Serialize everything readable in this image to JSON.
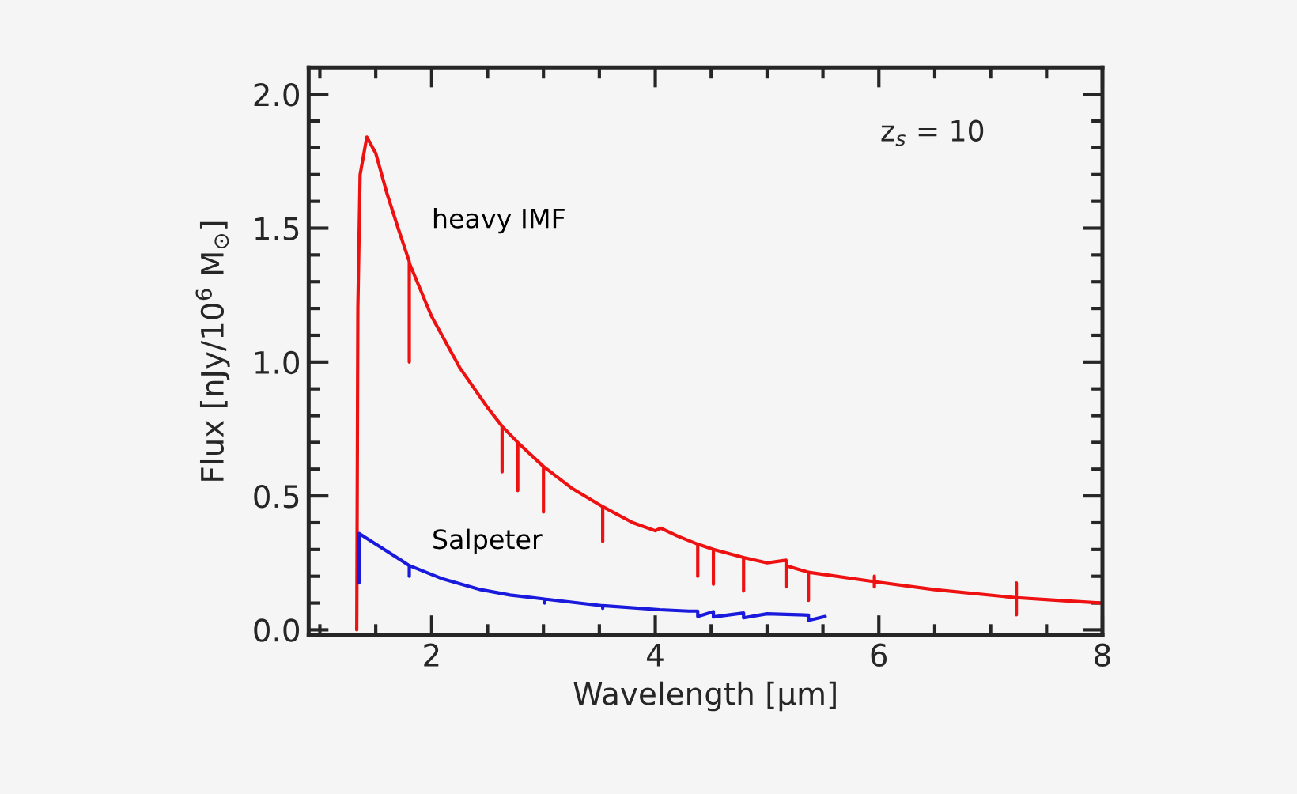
{
  "chart_data": {
    "type": "line",
    "xlabel": "Wavelength [μm]",
    "ylabel": "Flux [nJy/10$^{6}$ M$_{⊙}$]",
    "annotations": [
      "z$_{s}$ = 10"
    ],
    "xlim": [
      0.9,
      8
    ],
    "ylim": [
      -0.02,
      2.1
    ],
    "xticks": [
      {
        "value": 1.0,
        "label": null
      },
      {
        "value": 1.5,
        "label": null
      },
      2,
      {
        "value": 2.5,
        "label": null
      },
      {
        "value": 3.0,
        "label": null
      },
      {
        "value": 3.5,
        "label": null
      },
      4,
      {
        "value": 4.5,
        "label": null
      },
      {
        "value": 5.0,
        "label": null
      },
      {
        "value": 5.5,
        "label": null
      },
      6,
      {
        "value": 6.5,
        "label": null
      },
      {
        "value": 7.0,
        "label": null
      },
      {
        "value": 7.5,
        "label": null
      },
      8
    ],
    "yticks": [
      {
        "value": 0,
        "label": "0.0"
      },
      {
        "value": 0.1,
        "label": null
      },
      {
        "value": 0.2,
        "label": null
      },
      {
        "value": 0.3,
        "label": null
      },
      {
        "value": 0.4,
        "label": null
      },
      0.5,
      {
        "value": 0.6,
        "label": null
      },
      {
        "value": 0.7,
        "label": null
      },
      {
        "value": 0.8,
        "label": null
      },
      {
        "value": 0.9,
        "label": null
      },
      {
        "value": 1,
        "label": "1.0"
      },
      {
        "value": 1.1,
        "label": null
      },
      {
        "value": 1.2,
        "label": null
      },
      {
        "value": 1.3,
        "label": null
      },
      {
        "value": 1.4,
        "label": null
      },
      1.5,
      {
        "value": 1.6,
        "label": null
      },
      {
        "value": 1.7,
        "label": null
      },
      {
        "value": 1.8,
        "label": null
      },
      {
        "value": 1.9,
        "label": null
      },
      {
        "value": 2,
        "label": "2.0"
      }
    ],
    "grid": false,
    "legend": false,
    "marker": "none",
    "line_style": "solid",
    "series": [
      {
        "name": "heavy IMF",
        "color": "#ee1111",
        "x": [
          1.33,
          1.34,
          1.36,
          1.42,
          1.5,
          1.6,
          1.7,
          1.8,
          1.8,
          1.8,
          2.0,
          2.25,
          2.5,
          2.63,
          2.63,
          2.63,
          2.77,
          2.77,
          2.77,
          3.0,
          3.0,
          3.0,
          3.25,
          3.53,
          3.53,
          3.53,
          3.8,
          4.0,
          4.05,
          4.2,
          4.38,
          4.38,
          4.38,
          4.52,
          4.52,
          4.52,
          4.79,
          4.79,
          4.79,
          5.0,
          5.17,
          5.17,
          5.17,
          5.37,
          5.37,
          5.37,
          5.96,
          5.96,
          5.96,
          5.96,
          6.5,
          7.23,
          7.23,
          7.23,
          7.23,
          7.6,
          8.0
        ],
        "values": [
          0,
          1.2,
          1.7,
          1.84,
          1.78,
          1.63,
          1.5,
          1.375,
          1.0,
          1.37,
          1.17,
          0.98,
          0.83,
          0.76,
          0.59,
          0.76,
          0.7,
          0.52,
          0.7,
          0.61,
          0.44,
          0.61,
          0.53,
          0.46,
          0.33,
          0.46,
          0.4,
          0.37,
          0.38,
          0.35,
          0.32,
          0.2,
          0.32,
          0.3,
          0.17,
          0.3,
          0.27,
          0.145,
          0.27,
          0.25,
          0.26,
          0.16,
          0.24,
          0.215,
          0.11,
          0.215,
          0.18,
          0.2,
          0.16,
          0.18,
          0.15,
          0.12,
          0.175,
          0.056,
          0.12,
          0.11,
          0.1
        ]
      },
      {
        "name": "Salpeter",
        "color": "#1a1add",
        "x": [
          1.35,
          1.35,
          1.5,
          1.8,
          1.8,
          1.8,
          2.1,
          2.44,
          2.7,
          3.01,
          3.01,
          3.01,
          3.53,
          3.53,
          3.53,
          4.04,
          4.3,
          4.38,
          4.38,
          4.52,
          4.52,
          4.79,
          4.79,
          5.0,
          5.37,
          5.37,
          5.52
        ],
        "values": [
          0.175,
          0.36,
          0.32,
          0.24,
          0.2,
          0.24,
          0.19,
          0.15,
          0.13,
          0.115,
          0.1,
          0.115,
          0.09,
          0.08,
          0.09,
          0.075,
          0.07,
          0.07,
          0.05,
          0.068,
          0.048,
          0.063,
          0.045,
          0.06,
          0.055,
          0.035,
          0.05
        ]
      }
    ]
  }
}
